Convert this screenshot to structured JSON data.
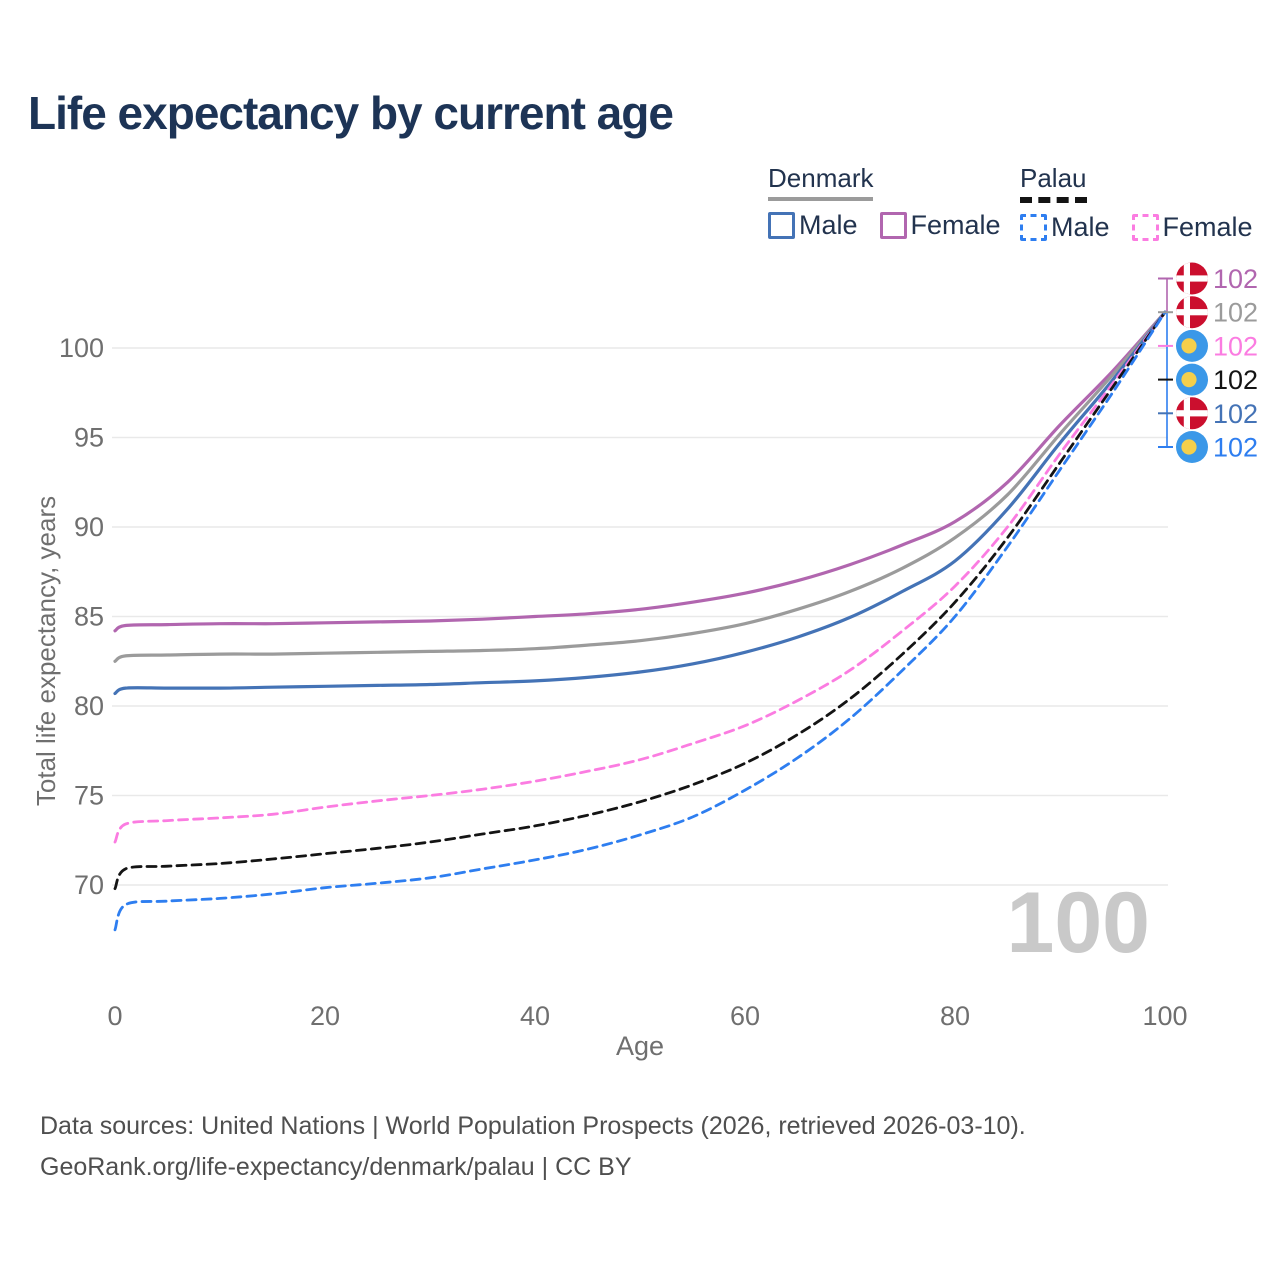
{
  "page": {
    "footer": {
      "line1": "Data sources: United Nations | World Population Prospects (2026, retrieved 2026-03-10).",
      "line2": "GeoRank.org/life-expectancy/denmark/palau | CC BY"
    }
  },
  "legend": {
    "groups": [
      {
        "country": "Denmark",
        "line_color": "#9b9b9b",
        "line_style": "solid",
        "items": [
          {
            "label": "Male",
            "color": "#4473b6",
            "style": "solid"
          },
          {
            "label": "Female",
            "color": "#b166af",
            "style": "solid"
          }
        ]
      },
      {
        "country": "Palau",
        "line_color": "#141414",
        "line_style": "dashed",
        "items": [
          {
            "label": "Male",
            "color": "#2e7ef0",
            "style": "dashed"
          },
          {
            "label": "Female",
            "color": "#fb7ce1",
            "style": "dashed"
          }
        ]
      }
    ]
  },
  "chart_data": {
    "type": "line",
    "title": "Life expectancy by current age",
    "xlabel": "Age",
    "ylabel": "Total life expectancy, years",
    "x_ticks": [
      0,
      20,
      40,
      60,
      80,
      100
    ],
    "y_ticks": [
      70,
      75,
      80,
      85,
      90,
      95,
      100
    ],
    "xlim": [
      0,
      100
    ],
    "ylim": [
      66.5,
      103.5
    ],
    "grid": "horizontal",
    "watermark": "100",
    "flag_colors": {
      "denmark_red": "#cb0f2e",
      "palau_blue": "#3b98e8",
      "palau_yellow": "#f5cf4b",
      "flag_cross_white": "#ffffff"
    },
    "ages": [
      0,
      1,
      5,
      10,
      15,
      20,
      25,
      30,
      35,
      40,
      45,
      50,
      55,
      60,
      65,
      70,
      75,
      80,
      85,
      90,
      95,
      100
    ],
    "series": [
      {
        "id": "denmark-female",
        "name": "Denmark Female",
        "country": "Denmark",
        "sex": "Female",
        "color": "#b166af",
        "style": "solid",
        "values": [
          84.2,
          84.5,
          84.55,
          84.6,
          84.6,
          84.65,
          84.7,
          84.75,
          84.85,
          85.0,
          85.15,
          85.4,
          85.8,
          86.3,
          87.0,
          87.9,
          89.0,
          90.3,
          92.5,
          95.7,
          98.7,
          102
        ]
      },
      {
        "id": "denmark-total",
        "name": "Denmark Both sexes",
        "country": "Denmark",
        "sex": "Both",
        "color": "#9b9b9b",
        "style": "solid",
        "values": [
          82.5,
          82.8,
          82.85,
          82.9,
          82.9,
          82.95,
          83.0,
          83.05,
          83.1,
          83.2,
          83.4,
          83.65,
          84.05,
          84.6,
          85.4,
          86.4,
          87.7,
          89.4,
          91.8,
          95.2,
          98.5,
          102
        ]
      },
      {
        "id": "denmark-male",
        "name": "Denmark Male",
        "country": "Denmark",
        "sex": "Male",
        "color": "#4473b6",
        "style": "solid",
        "values": [
          80.7,
          81.0,
          81.0,
          81.0,
          81.05,
          81.1,
          81.15,
          81.2,
          81.3,
          81.4,
          81.6,
          81.9,
          82.35,
          83.0,
          83.85,
          84.95,
          86.4,
          88.1,
          91.0,
          94.7,
          98.2,
          102
        ]
      },
      {
        "id": "palau-female",
        "name": "Palau Female",
        "country": "Palau",
        "sex": "Female",
        "color": "#fb7ce1",
        "style": "dashed",
        "values": [
          72.4,
          73.4,
          73.6,
          73.75,
          73.95,
          74.35,
          74.7,
          75.0,
          75.35,
          75.8,
          76.35,
          77.0,
          77.9,
          78.9,
          80.3,
          82.0,
          84.2,
          86.7,
          90.0,
          94.1,
          98.0,
          102
        ]
      },
      {
        "id": "palau-total",
        "name": "Palau Both sexes",
        "country": "Palau",
        "sex": "Both",
        "color": "#141414",
        "style": "dashed",
        "values": [
          69.8,
          70.9,
          71.05,
          71.2,
          71.45,
          71.75,
          72.05,
          72.4,
          72.85,
          73.3,
          73.9,
          74.65,
          75.6,
          76.8,
          78.4,
          80.4,
          82.9,
          85.8,
          89.4,
          93.6,
          97.8,
          102
        ]
      },
      {
        "id": "palau-male",
        "name": "Palau Male",
        "country": "Palau",
        "sex": "Male",
        "color": "#2e7ef0",
        "style": "dashed",
        "values": [
          67.5,
          68.9,
          69.1,
          69.25,
          69.5,
          69.85,
          70.1,
          70.4,
          70.9,
          71.4,
          72.0,
          72.8,
          73.8,
          75.3,
          77.1,
          79.3,
          82.0,
          85.0,
          88.9,
          93.2,
          97.5,
          102
        ]
      }
    ],
    "end_labels": [
      {
        "value": "102",
        "flag": "denmark",
        "color": "#b166af",
        "series": "denmark-female"
      },
      {
        "value": "102",
        "flag": "denmark",
        "color": "#9b9b9b",
        "series": "denmark-total"
      },
      {
        "value": "102",
        "flag": "palau",
        "color": "#fb7ce1",
        "series": "palau-female"
      },
      {
        "value": "102",
        "flag": "palau",
        "color": "#141414",
        "series": "palau-total"
      },
      {
        "value": "102",
        "flag": "denmark",
        "color": "#4473b6",
        "series": "denmark-male"
      },
      {
        "value": "102",
        "flag": "palau",
        "color": "#2e7ef0",
        "series": "palau-male"
      }
    ]
  }
}
